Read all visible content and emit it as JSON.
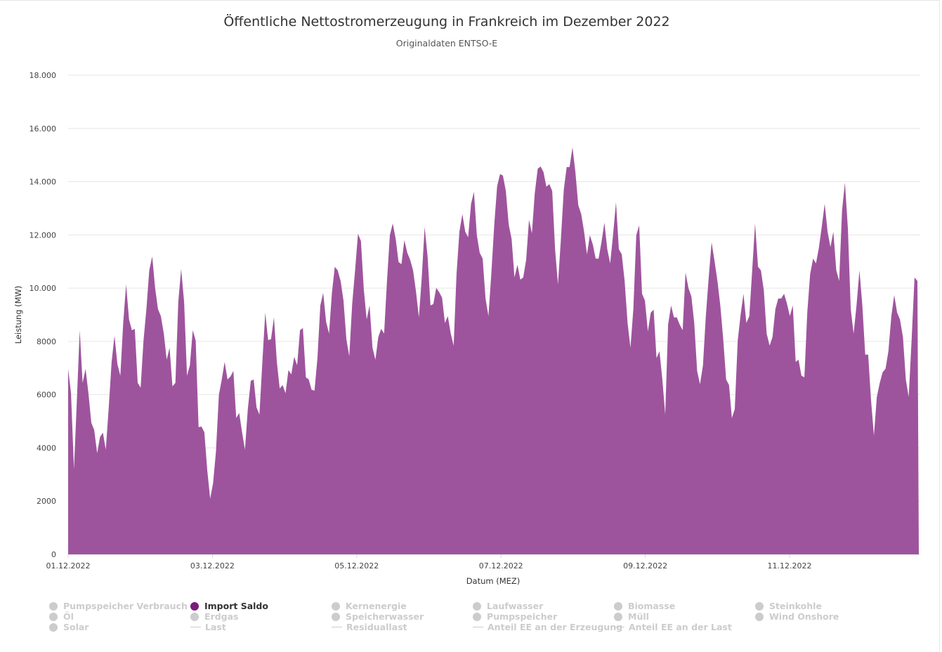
{
  "chart_data": {
    "type": "area",
    "title": "Öffentliche Nettostromerzeugung in Frankreich im Dezember 2022",
    "subtitle": "Originaldaten ENTSO-E",
    "xlabel": "Datum (MEZ)",
    "ylabel": "Leistung (MW)",
    "ylim": [
      0,
      18000
    ],
    "xlim": [
      "2022-12-01 00:00",
      "2022-12-12 19:00"
    ],
    "y_ticks": [
      {
        "value": 0,
        "label": "0"
      },
      {
        "value": 2000,
        "label": "2000"
      },
      {
        "value": 4000,
        "label": "4000"
      },
      {
        "value": 6000,
        "label": "6000"
      },
      {
        "value": 8000,
        "label": "8000"
      },
      {
        "value": 10000,
        "label": "10.000"
      },
      {
        "value": 12000,
        "label": "12.000"
      },
      {
        "value": 14000,
        "label": "14.000"
      },
      {
        "value": 16000,
        "label": "16.000"
      },
      {
        "value": 18000,
        "label": "18.000"
      }
    ],
    "x_ticks": [
      {
        "value": "2022-12-01 00:00",
        "label": "01.12.2022"
      },
      {
        "value": "2022-12-03 00:00",
        "label": "03.12.2022"
      },
      {
        "value": "2022-12-05 00:00",
        "label": "05.12.2022"
      },
      {
        "value": "2022-12-07 00:00",
        "label": "07.12.2022"
      },
      {
        "value": "2022-12-09 00:00",
        "label": "09.12.2022"
      },
      {
        "value": "2022-12-11 00:00",
        "label": "11.12.2022"
      }
    ],
    "grid": true,
    "legend_position": "bottom",
    "series": [
      {
        "name": "Import Saldo",
        "color": "#9c519b",
        "values": [
          6970,
          6050,
          3200,
          5780,
          8420,
          6440,
          6970,
          6050,
          4940,
          4670,
          3800,
          4410,
          4570,
          3930,
          5520,
          7230,
          8210,
          7150,
          6710,
          8690,
          10140,
          8820,
          8420,
          8470,
          6440,
          6260,
          8030,
          9210,
          10670,
          11190,
          10010,
          9210,
          8950,
          8290,
          7310,
          7760,
          6310,
          6440,
          9480,
          10720,
          9480,
          6710,
          7100,
          8420,
          8030,
          4780,
          4800,
          4590,
          3140,
          2090,
          2670,
          3850,
          5990,
          6570,
          7230,
          6570,
          6680,
          6890,
          5120,
          5310,
          4590,
          3930,
          5460,
          6520,
          6570,
          5520,
          5250,
          7230,
          9080,
          8050,
          8080,
          8900,
          7230,
          6230,
          6360,
          6050,
          6920,
          6760,
          7420,
          7100,
          8420,
          8500,
          6650,
          6570,
          6180,
          6150,
          7370,
          9350,
          9820,
          8740,
          8290,
          9820,
          10800,
          10670,
          10270,
          9530,
          8080,
          7440,
          9420,
          10670,
          12040,
          11770,
          9950,
          8820,
          9350,
          7760,
          7310,
          8160,
          8470,
          8290,
          10270,
          11990,
          12430,
          11850,
          10980,
          10900,
          11800,
          11330,
          11060,
          10670,
          9870,
          8900,
          10400,
          12300,
          11190,
          9350,
          9400,
          10010,
          9850,
          9640,
          8690,
          8950,
          8290,
          7840,
          10530,
          12120,
          12780,
          12120,
          11910,
          13170,
          13620,
          11990,
          11330,
          11110,
          9610,
          8950,
          10530,
          12380,
          13830,
          14280,
          14230,
          13650,
          12380,
          11850,
          10400,
          10880,
          10320,
          10400,
          11060,
          12570,
          12060,
          13570,
          14490,
          14570,
          14360,
          13810,
          13910,
          13650,
          11460,
          10140,
          11850,
          13700,
          14550,
          14550,
          15290,
          14360,
          13120,
          12780,
          12120,
          11270,
          11990,
          11640,
          11110,
          11110,
          11720,
          12460,
          11460,
          10930,
          11990,
          13230,
          11460,
          11270,
          10270,
          8690,
          7760,
          9210,
          11990,
          12360,
          9790,
          9530,
          8370,
          9080,
          9190,
          7370,
          7630,
          6570,
          5250,
          8630,
          9350,
          8900,
          8900,
          8630,
          8420,
          10590,
          10010,
          9690,
          8690,
          6890,
          6390,
          7100,
          8950,
          10400,
          11720,
          11010,
          10270,
          9350,
          8100,
          6570,
          6360,
          5120,
          5460,
          8030,
          9000,
          9790,
          8690,
          8950,
          10670,
          12430,
          10800,
          10670,
          9930,
          8290,
          7840,
          8160,
          9210,
          9610,
          9610,
          9790,
          9420,
          8950,
          9350,
          7230,
          7310,
          6710,
          6650,
          9080,
          10530,
          11110,
          10930,
          11510,
          12300,
          13170,
          12120,
          11540,
          12120,
          10670,
          10270,
          12910,
          13970,
          12250,
          9210,
          8290,
          9350,
          10670,
          9350,
          7500,
          7500,
          5780,
          4460,
          5910,
          6440,
          6840,
          6970,
          7630,
          8950,
          9740,
          9080,
          8820,
          8160,
          6570,
          5910,
          8030,
          10400,
          10270
        ]
      }
    ]
  },
  "legend": {
    "columns": [
      [
        {
          "label": "Pumpspeicher Verbrauch",
          "kind": "dot",
          "active": false
        },
        {
          "label": "Öl",
          "kind": "dot",
          "active": false
        },
        {
          "label": "Solar",
          "kind": "dot",
          "active": false
        }
      ],
      [
        {
          "label": "Import Saldo",
          "kind": "dot",
          "active": true,
          "color": "#7b1b7a"
        },
        {
          "label": "Erdgas",
          "kind": "dot",
          "active": false
        },
        {
          "label": "Last",
          "kind": "line",
          "active": false
        }
      ],
      [
        {
          "label": "Kernenergie",
          "kind": "dot",
          "active": false
        },
        {
          "label": "Speicherwasser",
          "kind": "dot",
          "active": false
        },
        {
          "label": "Residuallast",
          "kind": "line",
          "active": false
        }
      ],
      [
        {
          "label": "Laufwasser",
          "kind": "dot",
          "active": false
        },
        {
          "label": "Pumpspeicher",
          "kind": "dot",
          "active": false
        },
        {
          "label": "Anteil EE an der Erzeugung",
          "kind": "line",
          "active": false
        }
      ],
      [
        {
          "label": "Biomasse",
          "kind": "dot",
          "active": false
        },
        {
          "label": "Müll",
          "kind": "dot",
          "active": false
        },
        {
          "label": "Anteil EE an der Last",
          "kind": "line",
          "active": false
        }
      ],
      [
        {
          "label": "Steinkohle",
          "kind": "dot",
          "active": false
        },
        {
          "label": "Wind Onshore",
          "kind": "dot",
          "active": false
        }
      ]
    ]
  }
}
